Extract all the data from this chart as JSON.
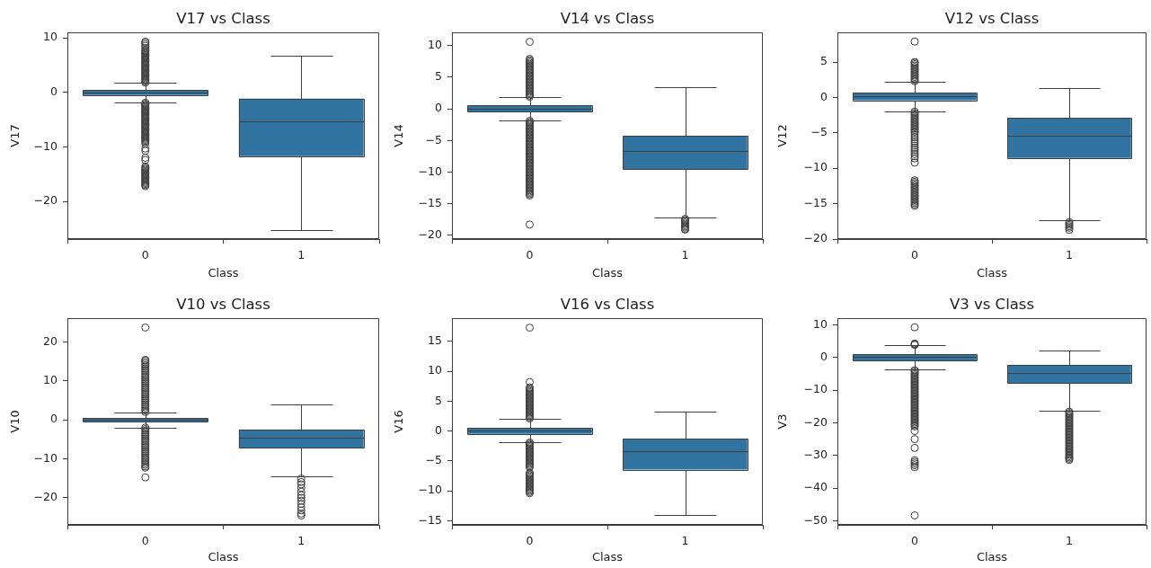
{
  "chart_data": [
    {
      "type": "box",
      "title": "V17 vs Class",
      "xlabel": "Class",
      "ylabel": "V17",
      "categories": [
        "0",
        "1"
      ],
      "marker": "circle",
      "ylim": [
        -26.9,
        11.0
      ],
      "yticks": [
        -20,
        -10,
        0,
        10
      ],
      "series": [
        {
          "color": "#3274a1",
          "boxes": [
            {
              "low": -1.9,
              "q1": -0.5,
              "median": -0.1,
              "q3": 0.4,
              "high": 1.7,
              "outliers": [
                1.8,
                2.0,
                2.2,
                2.4,
                2.6,
                2.8,
                3.0,
                3.2,
                3.4,
                3.6,
                3.8,
                4.0,
                4.2,
                4.4,
                4.6,
                4.8,
                5.0,
                5.2,
                5.4,
                5.6,
                5.8,
                6.0,
                6.2,
                6.4,
                6.6,
                6.8,
                7.0,
                7.2,
                7.4,
                7.6,
                7.8,
                8.1,
                8.5,
                8.8,
                9.1,
                9.3,
                -1.9,
                -2.1,
                -2.3,
                -2.5,
                -2.7,
                -2.9,
                -3.1,
                -3.3,
                -3.5,
                -3.7,
                -3.9,
                -4.1,
                -4.3,
                -4.5,
                -4.7,
                -4.9,
                -5.1,
                -5.3,
                -5.5,
                -5.7,
                -5.9,
                -6.1,
                -6.3,
                -6.5,
                -6.7,
                -6.9,
                -7.1,
                -7.3,
                -7.5,
                -7.7,
                -7.9,
                -8.1,
                -8.3,
                -8.5,
                -8.7,
                -8.9,
                -9.1,
                -9.4,
                -10.3,
                -10.7,
                -12.0,
                -12.4,
                -13.6,
                -13.8,
                -14.0,
                -14.2,
                -14.4,
                -14.6,
                -14.8,
                -15.0,
                -15.2,
                -15.4,
                -15.6,
                -15.8,
                -16.0,
                -16.2,
                -16.4,
                -16.6,
                -16.8,
                -17.0,
                -17.2
              ]
            },
            {
              "low": -25.2,
              "q1": -11.7,
              "median": -5.35,
              "q3": -1.15,
              "high": 6.7
            }
          ]
        }
      ]
    },
    {
      "type": "box",
      "title": "V14 vs Class",
      "xlabel": "Class",
      "ylabel": "V14",
      "categories": [
        "0",
        "1"
      ],
      "marker": "circle",
      "ylim": [
        -20.6,
        12.1
      ],
      "yticks": [
        -20,
        -15,
        -10,
        -5,
        0,
        5,
        10
      ],
      "series": [
        {
          "color": "#3274a1",
          "boxes": [
            {
              "low": -1.85,
              "q1": -0.43,
              "median": 0.05,
              "q3": 0.52,
              "high": 1.9,
              "outliers": [
                1.9,
                2.1,
                2.3,
                2.5,
                2.7,
                2.9,
                3.1,
                3.3,
                3.5,
                3.7,
                3.9,
                4.1,
                4.3,
                4.5,
                4.7,
                4.9,
                5.1,
                5.3,
                5.5,
                5.7,
                5.9,
                6.1,
                6.3,
                6.5,
                6.7,
                6.9,
                7.1,
                7.3,
                7.5,
                7.7,
                7.9,
                10.6,
                -1.9,
                -2.1,
                -2.3,
                -2.5,
                -2.7,
                -2.9,
                -3.1,
                -3.3,
                -3.5,
                -3.7,
                -3.9,
                -4.1,
                -4.3,
                -4.5,
                -4.7,
                -4.9,
                -5.1,
                -5.3,
                -5.5,
                -5.7,
                -5.9,
                -6.1,
                -6.3,
                -6.5,
                -6.7,
                -6.9,
                -7.1,
                -7.3,
                -7.5,
                -7.7,
                -7.9,
                -8.1,
                -8.3,
                -8.5,
                -8.7,
                -8.9,
                -9.1,
                -9.3,
                -9.5,
                -9.7,
                -9.9,
                -10.1,
                -10.3,
                -10.5,
                -10.7,
                -10.9,
                -11.1,
                -11.3,
                -11.5,
                -11.7,
                -11.9,
                -12.1,
                -12.3,
                -12.5,
                -12.7,
                -12.9,
                -13.1,
                -13.3,
                -13.5,
                -13.7,
                -18.3
              ]
            },
            {
              "low": -17.2,
              "q1": -9.5,
              "median": -6.6,
              "q3": -4.3,
              "high": 3.4,
              "outliers": [
                -17.4,
                -17.6,
                -17.8,
                -18.0,
                -18.2,
                -18.4,
                -18.6,
                -18.8,
                -19.0,
                -19.1
              ]
            }
          ]
        }
      ]
    },
    {
      "type": "box",
      "title": "V12 vs Class",
      "xlabel": "Class",
      "ylabel": "V12",
      "categories": [
        "0",
        "1"
      ],
      "marker": "circle",
      "ylim": [
        -20.0,
        9.2
      ],
      "yticks": [
        -20,
        -15,
        -10,
        -5,
        0,
        5
      ],
      "series": [
        {
          "color": "#3274a1",
          "boxes": [
            {
              "low": -1.95,
              "q1": -0.4,
              "median": 0.15,
              "q3": 0.7,
              "high": 2.2,
              "outliers": [
                2.3,
                2.5,
                2.7,
                2.9,
                3.1,
                3.3,
                3.5,
                3.7,
                3.9,
                4.1,
                4.3,
                4.5,
                4.7,
                4.9,
                5.0,
                7.9,
                -2.0,
                -2.2,
                -2.4,
                -2.6,
                -2.8,
                -3.0,
                -3.2,
                -3.4,
                -3.6,
                -3.8,
                -4.0,
                -4.2,
                -4.4,
                -4.6,
                -4.8,
                -5.0,
                -5.3,
                -5.6,
                -5.9,
                -6.2,
                -6.5,
                -6.8,
                -7.1,
                -7.4,
                -7.7,
                -8.0,
                -8.3,
                -8.6,
                -9.2,
                -11.7,
                -11.9,
                -12.1,
                -12.3,
                -12.5,
                -12.7,
                -12.9,
                -13.1,
                -13.3,
                -13.5,
                -13.7,
                -13.9,
                -14.1,
                -14.3,
                -14.5,
                -14.7,
                -14.9,
                -15.1,
                -15.3
              ]
            },
            {
              "low": -17.3,
              "q1": -8.55,
              "median": -5.45,
              "q3": -2.85,
              "high": 1.35,
              "outliers": [
                -17.6,
                -17.8,
                -18.0,
                -18.2,
                -18.4,
                -18.7
              ]
            }
          ]
        }
      ]
    },
    {
      "type": "box",
      "title": "V10 vs Class",
      "xlabel": "Class",
      "ylabel": "V10",
      "categories": [
        "0",
        "1"
      ],
      "marker": "circle",
      "ylim": [
        -27.0,
        26.1
      ],
      "yticks": [
        -20,
        -10,
        0,
        10,
        20
      ],
      "series": [
        {
          "color": "#3274a1",
          "boxes": [
            {
              "low": -2.0,
              "q1": -0.55,
              "median": -0.1,
              "q3": 0.45,
              "high": 1.9,
              "outliers": [
                2.0,
                2.4,
                2.8,
                3.2,
                3.6,
                4.0,
                4.4,
                4.8,
                5.2,
                5.6,
                6.0,
                6.4,
                6.8,
                7.2,
                7.6,
                8.0,
                8.4,
                8.8,
                9.2,
                9.6,
                10.0,
                10.4,
                10.8,
                11.2,
                11.6,
                12.0,
                12.4,
                12.8,
                13.2,
                13.6,
                14.0,
                14.4,
                14.8,
                15.2,
                15.4,
                23.7,
                -2.0,
                -2.4,
                -2.8,
                -3.2,
                -3.6,
                -4.0,
                -4.4,
                -4.8,
                -5.2,
                -5.6,
                -6.0,
                -6.4,
                -6.8,
                -7.2,
                -7.6,
                -8.0,
                -8.4,
                -8.8,
                -9.2,
                -9.6,
                -10.0,
                -10.4,
                -10.8,
                -11.2,
                -11.6,
                -12.0,
                -12.3,
                -14.8
              ]
            },
            {
              "low": -14.5,
              "q1": -7.2,
              "median": -4.55,
              "q3": -2.55,
              "high": 4.0,
              "outliers": [
                -15.1,
                -16.0,
                -16.6,
                -17.5,
                -18.5,
                -19.4,
                -20.1,
                -20.8,
                -21.6,
                -22.5,
                -23.3,
                -24.1,
                -24.6
              ]
            }
          ]
        }
      ]
    },
    {
      "type": "box",
      "title": "V16 vs Class",
      "xlabel": "Class",
      "ylabel": "V16",
      "categories": [
        "0",
        "1"
      ],
      "marker": "circle",
      "ylim": [
        -15.7,
        18.9
      ],
      "yticks": [
        -15,
        -10,
        -5,
        0,
        5,
        10,
        15
      ],
      "series": [
        {
          "color": "#3274a1",
          "boxes": [
            {
              "low": -1.85,
              "q1": -0.45,
              "median": 0.05,
              "q3": 0.55,
              "high": 2.05,
              "outliers": [
                2.1,
                2.3,
                2.5,
                2.7,
                2.9,
                3.1,
                3.3,
                3.5,
                3.7,
                3.9,
                4.1,
                4.3,
                4.5,
                4.7,
                4.9,
                5.1,
                5.3,
                5.5,
                5.7,
                5.9,
                6.1,
                6.3,
                6.5,
                6.7,
                6.9,
                7.1,
                7.3,
                8.2,
                17.3,
                -1.9,
                -2.1,
                -2.3,
                -2.5,
                -2.7,
                -2.9,
                -3.1,
                -3.3,
                -3.5,
                -3.7,
                -3.9,
                -4.1,
                -4.3,
                -4.5,
                -4.7,
                -4.9,
                -5.1,
                -5.3,
                -5.5,
                -5.7,
                -5.9,
                -6.1,
                -7.0,
                -7.2,
                -7.4,
                -7.6,
                -7.8,
                -8.0,
                -8.2,
                -8.4,
                -8.6,
                -8.8,
                -9.0,
                -9.2,
                -9.4,
                -9.6,
                -9.8,
                -10.0,
                -10.2,
                -10.4
              ]
            },
            {
              "low": -14.1,
              "q1": -6.45,
              "median": -3.3,
              "q3": -1.25,
              "high": 3.2
            }
          ]
        }
      ]
    },
    {
      "type": "box",
      "title": "V3 vs Class",
      "xlabel": "Class",
      "ylabel": "V3",
      "categories": [
        "0",
        "1"
      ],
      "marker": "circle",
      "ylim": [
        -51.3,
        12.1
      ],
      "yticks": [
        -50,
        -40,
        -30,
        -20,
        -10,
        0,
        10
      ],
      "series": [
        {
          "color": "#3274a1",
          "boxes": [
            {
              "low": -3.7,
              "q1": -0.9,
              "median": 0.2,
              "q3": 1.0,
              "high": 3.8,
              "outliers": [
                3.9,
                4.1,
                4.3,
                9.3,
                -3.9,
                -4.3,
                -4.7,
                -5.1,
                -5.5,
                -5.9,
                -6.3,
                -6.7,
                -7.1,
                -7.5,
                -7.9,
                -8.3,
                -8.7,
                -9.1,
                -9.5,
                -9.9,
                -10.3,
                -10.7,
                -11.1,
                -11.5,
                -11.9,
                -12.3,
                -12.7,
                -13.1,
                -13.5,
                -13.9,
                -14.3,
                -14.7,
                -15.1,
                -15.5,
                -15.9,
                -16.3,
                -16.7,
                -17.1,
                -17.5,
                -17.9,
                -18.3,
                -18.7,
                -19.1,
                -19.5,
                -19.9,
                -20.3,
                -20.7,
                -21.1,
                -22.5,
                -25.0,
                -27.7,
                -31.5,
                -32.0,
                -32.5,
                -33.0,
                -33.6,
                -48.4
              ]
            },
            {
              "low": -16.3,
              "q1": -7.8,
              "median": -4.8,
              "q3": -2.3,
              "high": 2.3,
              "outliers": [
                -16.6,
                -17.0,
                -17.4,
                -17.8,
                -18.2,
                -18.6,
                -19.0,
                -19.4,
                -19.8,
                -20.2,
                -20.6,
                -21.0,
                -21.4,
                -21.8,
                -22.2,
                -22.6,
                -23.0,
                -23.4,
                -23.8,
                -24.2,
                -24.6,
                -25.0,
                -25.4,
                -25.8,
                -26.2,
                -26.6,
                -27.0,
                -27.4,
                -27.8,
                -28.2,
                -28.6,
                -29.0,
                -29.4,
                -29.8,
                -30.2,
                -30.6,
                -31.0,
                -31.4
              ]
            }
          ]
        }
      ]
    }
  ]
}
